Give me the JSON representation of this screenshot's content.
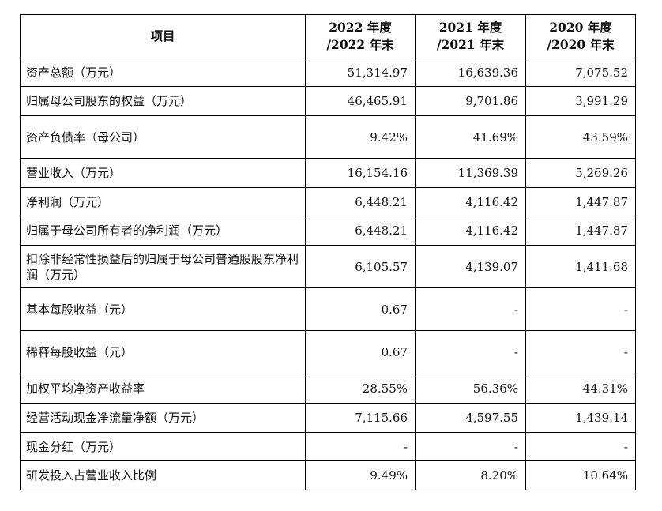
{
  "table": {
    "headers": [
      "项目",
      "2022 年度/2022 年末",
      "2021 年度/2021 年末",
      "2020 年度/2020 年末"
    ],
    "header_lines": [
      [
        "项目"
      ],
      [
        "2022 年度",
        "/2022 年末"
      ],
      [
        "2021 年度",
        "/2021 年末"
      ],
      [
        "2020 年度",
        "/2020 年末"
      ]
    ],
    "rows": [
      {
        "label": "资产总额（万元）",
        "v2022": "51,314.97",
        "v2021": "16,639.36",
        "v2020": "7,075.52"
      },
      {
        "label": "归属母公司股东的权益（万元）",
        "v2022": "46,465.91",
        "v2021": "9,701.86",
        "v2020": "3,991.29"
      },
      {
        "label": "资产负债率（母公司）",
        "v2022": "9.42%",
        "v2021": "41.69%",
        "v2020": "43.59%"
      },
      {
        "label": "营业收入（万元）",
        "v2022": "16,154.16",
        "v2021": "11,369.39",
        "v2020": "5,269.26"
      },
      {
        "label": "净利润（万元）",
        "v2022": "6,448.21",
        "v2021": "4,116.42",
        "v2020": "1,447.87"
      },
      {
        "label": "归属于母公司所有者的净利润（万元）",
        "v2022": "6,448.21",
        "v2021": "4,116.42",
        "v2020": "1,447.87"
      },
      {
        "label": "扣除非经常性损益后的归属于母公司普通股股东净利润（万元）",
        "v2022": "6,105.57",
        "v2021": "4,139.07",
        "v2020": "1,411.68"
      },
      {
        "label": "基本每股收益（元）",
        "v2022": "0.67",
        "v2021": "-",
        "v2020": "-"
      },
      {
        "label": "稀释每股收益（元）",
        "v2022": "0.67",
        "v2021": "-",
        "v2020": "-"
      },
      {
        "label": "加权平均净资产收益率",
        "v2022": "28.55%",
        "v2021": "56.36%",
        "v2020": "44.31%"
      },
      {
        "label": "经营活动现金净流量净额（万元）",
        "v2022": "7,115.66",
        "v2021": "4,597.55",
        "v2020": "1,439.14"
      },
      {
        "label": "现金分红（万元）",
        "v2022": "-",
        "v2021": "-",
        "v2020": "-"
      },
      {
        "label": "研发投入占营业收入比例",
        "v2022": "9.49%",
        "v2021": "8.20%",
        "v2020": "10.64%"
      }
    ]
  }
}
